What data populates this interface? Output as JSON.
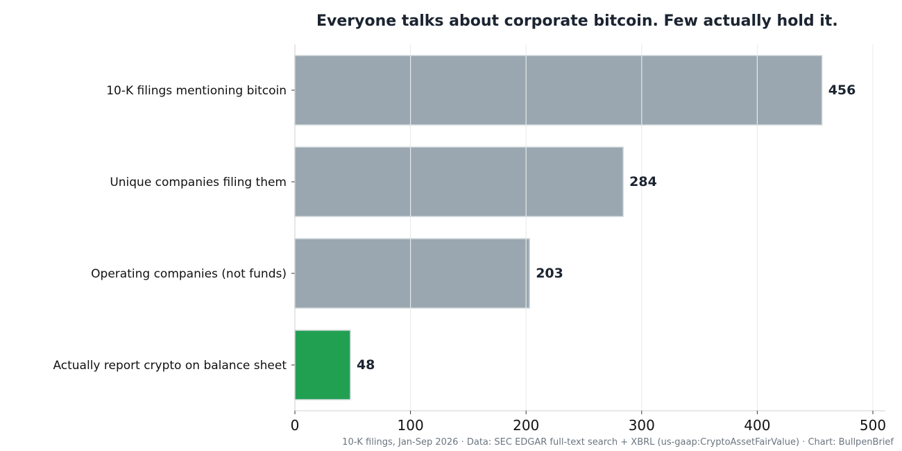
{
  "chart_data": {
    "type": "bar",
    "orientation": "horizontal",
    "title": "Everyone talks about corporate bitcoin. Few actually hold it.",
    "caption": "10-K filings, Jan-Sep 2026 · Data: SEC EDGAR full-text search + XBRL (us-gaap:CryptoAssetFairValue) · Chart: BullpenBrief",
    "categories": [
      "10-K filings mentioning bitcoin",
      "Unique companies filing them",
      "Operating companies (not funds)",
      "Actually report crypto on balance sheet"
    ],
    "values": [
      456,
      284,
      203,
      48
    ],
    "bar_colors": [
      "#9aa7b0",
      "#9aa7b0",
      "#9aa7b0",
      "#22a052"
    ],
    "xlim": [
      0,
      500
    ],
    "xticks": [
      0,
      100,
      200,
      300,
      400,
      500
    ],
    "grid": "vertical",
    "legend": "none"
  },
  "colors": {
    "gray_bar": "#9aa7b0",
    "highlight_bar": "#22a052",
    "text": "#1b2430",
    "gridline": "#e8e8e8"
  }
}
